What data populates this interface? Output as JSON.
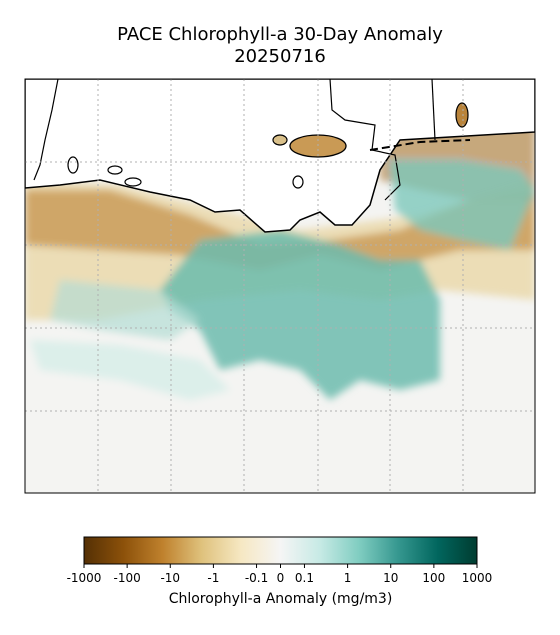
{
  "title": "PACE Chlorophyll-a 30-Day Anomaly",
  "subtitle": "20250716",
  "colorbar": {
    "label": "Chlorophyll-a Anomaly (mg/m3)",
    "ticks": [
      -1000,
      -100,
      -10,
      -1,
      -0.1,
      0,
      0.1,
      1,
      10,
      100,
      1000
    ],
    "lim": [
      -1000,
      1000
    ],
    "scale": "symlog",
    "linthresh": 0.1,
    "colormap": "BrBG"
  }
}
